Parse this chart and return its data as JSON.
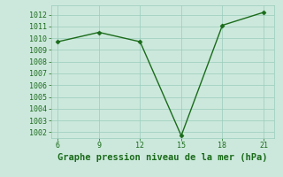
{
  "x": [
    6,
    9,
    12,
    15,
    18,
    21
  ],
  "y": [
    1009.7,
    1010.5,
    1009.7,
    1001.7,
    1011.1,
    1012.2
  ],
  "line_color": "#1a6b1a",
  "marker": "D",
  "markersize": 2.5,
  "linewidth": 1.0,
  "title": "Graphe pression niveau de la mer (hPa)",
  "title_fontsize": 7.5,
  "title_color": "#1a6b1a",
  "background_color": "#cce8dc",
  "grid_color": "#99ccbb",
  "xlim": [
    5.5,
    21.8
  ],
  "ylim": [
    1001.5,
    1012.8
  ],
  "xticks": [
    6,
    9,
    12,
    15,
    18,
    21
  ],
  "yticks": [
    1002,
    1003,
    1004,
    1005,
    1006,
    1007,
    1008,
    1009,
    1010,
    1011,
    1012
  ],
  "tick_fontsize": 6.0,
  "tick_color": "#1a6b1a"
}
